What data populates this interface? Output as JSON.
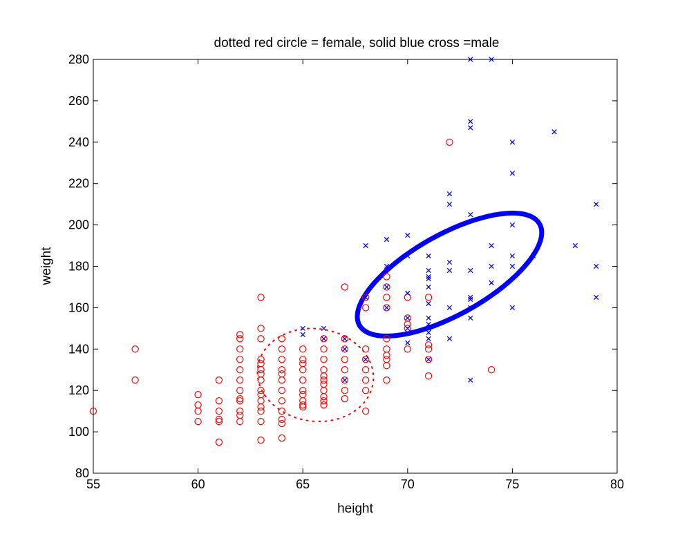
{
  "chart_data": {
    "type": "scatter",
    "title": "dotted red circle = female, solid blue cross =male",
    "xlabel": "height",
    "ylabel": "weight",
    "xlim": [
      55,
      80
    ],
    "ylim": [
      80,
      280
    ],
    "xticks": [
      "55",
      "60",
      "65",
      "70",
      "75",
      "80"
    ],
    "yticks": [
      "80",
      "100",
      "120",
      "140",
      "160",
      "180",
      "200",
      "220",
      "240",
      "260",
      "280"
    ],
    "grid": false,
    "series": [
      {
        "marker": "circle",
        "color": "#ff0000",
        "points": [
          [
            55,
            110
          ],
          [
            57,
            140
          ],
          [
            57,
            125
          ],
          [
            60,
            118
          ],
          [
            60,
            113
          ],
          [
            60,
            110
          ],
          [
            60,
            105
          ],
          [
            61,
            125
          ],
          [
            61,
            115
          ],
          [
            61,
            110
          ],
          [
            61,
            106
          ],
          [
            61,
            105
          ],
          [
            61,
            95
          ],
          [
            62,
            147
          ],
          [
            62,
            145
          ],
          [
            62,
            140
          ],
          [
            62,
            135
          ],
          [
            62,
            130
          ],
          [
            62,
            125
          ],
          [
            62,
            120
          ],
          [
            62,
            116
          ],
          [
            62,
            115
          ],
          [
            62,
            110
          ],
          [
            62,
            108
          ],
          [
            62,
            105
          ],
          [
            63,
            165
          ],
          [
            63,
            150
          ],
          [
            63,
            145
          ],
          [
            63,
            135
          ],
          [
            63,
            133
          ],
          [
            63,
            130
          ],
          [
            63,
            128
          ],
          [
            63,
            125
          ],
          [
            63,
            120
          ],
          [
            63,
            118
          ],
          [
            63,
            115
          ],
          [
            63,
            112
          ],
          [
            63,
            110
          ],
          [
            63,
            105
          ],
          [
            63,
            96
          ],
          [
            64,
            145
          ],
          [
            64,
            140
          ],
          [
            64,
            135
          ],
          [
            64,
            130
          ],
          [
            64,
            128
          ],
          [
            64,
            125
          ],
          [
            64,
            120
          ],
          [
            64,
            115
          ],
          [
            64,
            110
          ],
          [
            64,
            106
          ],
          [
            64,
            104
          ],
          [
            64,
            97
          ],
          [
            65,
            140
          ],
          [
            65,
            135
          ],
          [
            65,
            133
          ],
          [
            65,
            130
          ],
          [
            65,
            125
          ],
          [
            65,
            120
          ],
          [
            65,
            118
          ],
          [
            65,
            115
          ],
          [
            65,
            113
          ],
          [
            65,
            112
          ],
          [
            66,
            145
          ],
          [
            66,
            140
          ],
          [
            66,
            135
          ],
          [
            66,
            130
          ],
          [
            66,
            127
          ],
          [
            66,
            125
          ],
          [
            66,
            123
          ],
          [
            66,
            120
          ],
          [
            66,
            117
          ],
          [
            66,
            115
          ],
          [
            66,
            113
          ],
          [
            67,
            170
          ],
          [
            67,
            145
          ],
          [
            67,
            140
          ],
          [
            67,
            135
          ],
          [
            67,
            130
          ],
          [
            67,
            125
          ],
          [
            67,
            120
          ],
          [
            67,
            116
          ],
          [
            68,
            165
          ],
          [
            68,
            160
          ],
          [
            68,
            140
          ],
          [
            68,
            135
          ],
          [
            68,
            130
          ],
          [
            68,
            125
          ],
          [
            68,
            120
          ],
          [
            68,
            110
          ],
          [
            69,
            175
          ],
          [
            69,
            170
          ],
          [
            69,
            165
          ],
          [
            69,
            160
          ],
          [
            69,
            145
          ],
          [
            69,
            140
          ],
          [
            69,
            137
          ],
          [
            69,
            135
          ],
          [
            69,
            132
          ],
          [
            69,
            125
          ],
          [
            70,
            165
          ],
          [
            70,
            155
          ],
          [
            70,
            152
          ],
          [
            70,
            150
          ],
          [
            70,
            140
          ],
          [
            71,
            165
          ],
          [
            71,
            142
          ],
          [
            71,
            140
          ],
          [
            71,
            135
          ],
          [
            71,
            127
          ],
          [
            72,
            240
          ],
          [
            74,
            130
          ]
        ]
      },
      {
        "marker": "x",
        "color": "#0000ff",
        "points": [
          [
            65,
            150
          ],
          [
            65,
            147
          ],
          [
            66,
            150
          ],
          [
            66,
            145
          ],
          [
            67,
            145
          ],
          [
            67,
            140
          ],
          [
            67,
            125
          ],
          [
            68,
            190
          ],
          [
            68,
            165
          ],
          [
            68,
            135
          ],
          [
            69,
            193
          ],
          [
            69,
            180
          ],
          [
            69,
            170
          ],
          [
            69,
            160
          ],
          [
            70,
            195
          ],
          [
            70,
            185
          ],
          [
            70,
            167
          ],
          [
            70,
            155
          ],
          [
            70,
            150
          ],
          [
            70,
            143
          ],
          [
            71,
            185
          ],
          [
            71,
            178
          ],
          [
            71,
            175
          ],
          [
            71,
            174
          ],
          [
            71,
            170
          ],
          [
            71,
            162
          ],
          [
            71,
            155
          ],
          [
            71,
            152
          ],
          [
            71,
            150
          ],
          [
            71,
            148
          ],
          [
            71,
            145
          ],
          [
            71,
            135
          ],
          [
            72,
            215
          ],
          [
            72,
            210
          ],
          [
            72,
            182
          ],
          [
            72,
            178
          ],
          [
            72,
            160
          ],
          [
            72,
            145
          ],
          [
            73,
            280
          ],
          [
            73,
            250
          ],
          [
            73,
            247
          ],
          [
            73,
            205
          ],
          [
            73,
            178
          ],
          [
            73,
            165
          ],
          [
            73,
            164
          ],
          [
            73,
            160
          ],
          [
            73,
            155
          ],
          [
            73,
            125
          ],
          [
            74,
            280
          ],
          [
            74,
            190
          ],
          [
            74,
            180
          ],
          [
            74,
            172
          ],
          [
            75,
            240
          ],
          [
            75,
            225
          ],
          [
            75,
            200
          ],
          [
            75,
            185
          ],
          [
            75,
            180
          ],
          [
            75,
            160
          ],
          [
            76,
            185
          ],
          [
            77,
            245
          ],
          [
            78,
            190
          ],
          [
            79,
            210
          ],
          [
            79,
            180
          ],
          [
            79,
            165
          ]
        ]
      }
    ],
    "ellipses": [
      {
        "center": [
          65.6,
          127.5
        ],
        "radius_x": 2.7,
        "radius_y": 23,
        "angle_deg": 38,
        "color": "#ff0000",
        "style": "dotted"
      },
      {
        "center": [
          72.0,
          176.0
        ],
        "radius_x": 5.3,
        "radius_y": 18,
        "angle_deg": 38,
        "color": "#0000ff",
        "style": "solid"
      }
    ]
  }
}
